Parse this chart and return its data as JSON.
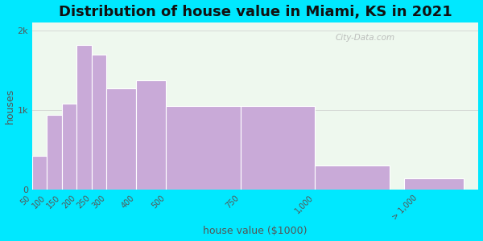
{
  "title": "Distribution of house value in Miami, KS in 2021",
  "xlabel": "house value ($1000)",
  "ylabel": "houses",
  "bar_color": "#c9aad8",
  "bar_edge_color": "#ffffff",
  "background_outer": "#00e8ff",
  "background_inner": "#eef8ee",
  "categories": [
    "50",
    "100",
    "150",
    "200",
    "250",
    "300",
    "400",
    "500",
    "750",
    "1,000",
    "> 1,000"
  ],
  "left_edges": [
    50,
    100,
    150,
    200,
    250,
    300,
    400,
    500,
    750,
    1000,
    1300
  ],
  "widths": [
    50,
    50,
    50,
    50,
    50,
    100,
    100,
    250,
    250,
    250,
    200
  ],
  "values": [
    430,
    940,
    1080,
    1820,
    1700,
    1270,
    1370,
    1050,
    1050,
    310,
    150
  ],
  "ylim": [
    0,
    2100
  ],
  "yticks": [
    0,
    1000,
    2000
  ],
  "ytick_labels": [
    "0",
    "1k",
    "2k"
  ],
  "title_fontsize": 13,
  "label_fontsize": 9,
  "tick_fontsize": 8,
  "watermark_text": "City-Data.com"
}
